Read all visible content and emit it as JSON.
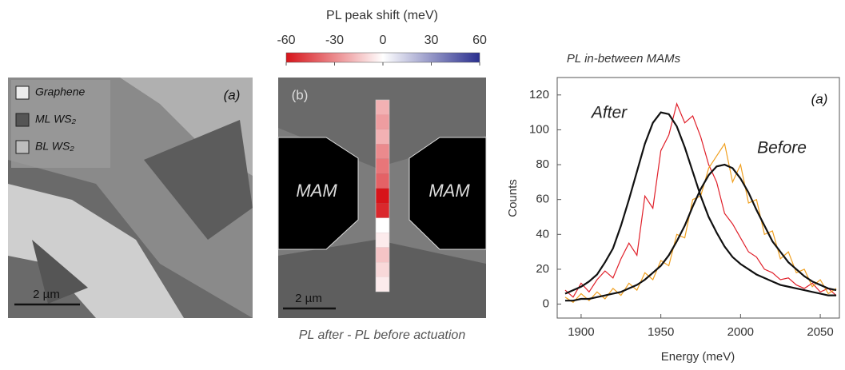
{
  "panel_a": {
    "label": "(a)",
    "legend": [
      "Graphene",
      "ML WS₂",
      "BL WS₂"
    ],
    "legend_colors": [
      "#ededed",
      "#555555",
      "#bdbdbd"
    ],
    "scale_bar": "2 µm"
  },
  "panel_b": {
    "label": "(b)",
    "colorbar_title": "PL peak shift (meV)",
    "clim": [
      -60,
      60
    ],
    "cticks": [
      -60,
      -30,
      0,
      30,
      60
    ],
    "cmap": [
      "#d7141a",
      "#ffffff",
      "#2a2f8f"
    ],
    "regions": [
      "MAM",
      "MAM"
    ],
    "scale_bar": "2 µm",
    "caption": "PL after - PL before actuation",
    "strip_values": [
      -20,
      -25,
      -20,
      -30,
      -35,
      -40,
      -60,
      -55,
      0,
      -5,
      -15,
      -10,
      -5
    ]
  },
  "chart_data": {
    "type": "line",
    "title": "PL in-between MAMs",
    "panel_label": "(a)",
    "xlabel": "Energy (meV)",
    "ylabel": "Counts",
    "x": [
      1890,
      1895,
      1900,
      1905,
      1910,
      1915,
      1920,
      1925,
      1930,
      1935,
      1940,
      1945,
      1950,
      1955,
      1960,
      1965,
      1970,
      1975,
      1980,
      1985,
      1990,
      1995,
      2000,
      2005,
      2010,
      2015,
      2020,
      2025,
      2030,
      2035,
      2040,
      2045,
      2050,
      2055,
      2060
    ],
    "series": [
      {
        "name": "After",
        "color": "#e0202a",
        "values": [
          8,
          4,
          12,
          7,
          14,
          19,
          15,
          26,
          35,
          28,
          62,
          55,
          88,
          97,
          115,
          104,
          108,
          96,
          80,
          70,
          52,
          46,
          38,
          30,
          27,
          20,
          18,
          14,
          15,
          11,
          9,
          12,
          7,
          9,
          5
        ]
      },
      {
        "name": "Before",
        "color": "#f0a020",
        "values": [
          4,
          1,
          6,
          2,
          7,
          3,
          9,
          5,
          12,
          8,
          18,
          14,
          25,
          22,
          40,
          38,
          60,
          62,
          78,
          85,
          92,
          70,
          80,
          58,
          60,
          40,
          42,
          26,
          30,
          18,
          20,
          10,
          14,
          6,
          9
        ]
      },
      {
        "color": "#111111",
        "values": [
          6,
          8,
          10,
          13,
          17,
          24,
          32,
          45,
          60,
          76,
          92,
          104,
          110,
          109,
          102,
          90,
          76,
          62,
          50,
          41,
          33,
          27,
          23,
          20,
          17,
          15,
          13,
          11,
          10,
          9,
          8,
          7,
          6,
          5,
          5
        ]
      },
      {
        "color": "#111111",
        "values": [
          2,
          2,
          3,
          3,
          4,
          5,
          6,
          7,
          9,
          11,
          14,
          18,
          22,
          28,
          36,
          45,
          56,
          66,
          74,
          79,
          80,
          78,
          72,
          64,
          54,
          45,
          36,
          30,
          24,
          20,
          16,
          13,
          11,
          9,
          8
        ]
      }
    ],
    "xlim": [
      1885,
      2062
    ],
    "xticks": [
      1900,
      1950,
      2000,
      2050
    ],
    "ylim": [
      -8,
      130
    ],
    "yticks": [
      0,
      20,
      40,
      60,
      80,
      100,
      120
    ]
  }
}
